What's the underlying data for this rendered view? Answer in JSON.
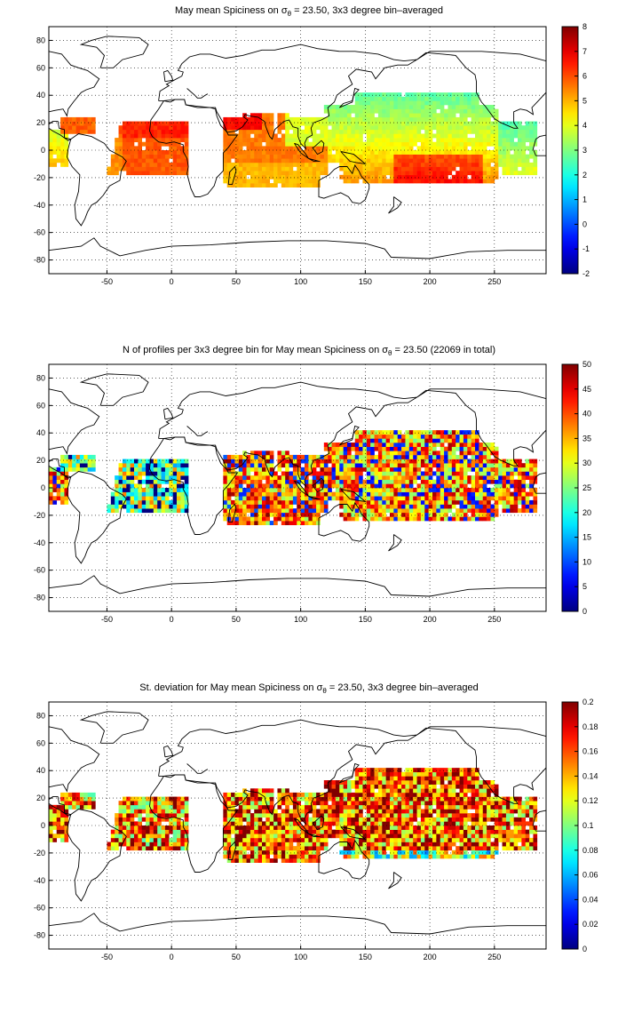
{
  "panels": [
    {
      "title_pre": "May mean Spiciness on ",
      "title_sigma": "σ",
      "title_sub": "θ",
      "title_post": " = 23.50, 3x3 degree bin–averaged",
      "colorbar": {
        "min": -2,
        "max": 8,
        "ticks": [
          "8",
          "7",
          "6",
          "5",
          "4",
          "3",
          "2",
          "1",
          "0",
          "-1",
          "-2"
        ]
      }
    },
    {
      "title_pre": "N of profiles per 3x3 degree bin for May mean Spiciness on ",
      "title_sigma": "σ",
      "title_sub": "θ",
      "title_post": " = 23.50 (22069 in total)",
      "colorbar": {
        "min": 0,
        "max": 50,
        "ticks": [
          "50",
          "45",
          "40",
          "35",
          "30",
          "25",
          "20",
          "15",
          "10",
          "5",
          "0"
        ]
      }
    },
    {
      "title_pre": "St. deviation for May mean Spiciness on ",
      "title_sigma": "σ",
      "title_sub": "θ",
      "title_post": " = 23.50, 3x3 degree bin–averaged",
      "colorbar": {
        "min": 0,
        "max": 0.2,
        "ticks": [
          "0.2",
          "0.18",
          "0.16",
          "0.14",
          "0.12",
          "0.1",
          "0.08",
          "0.06",
          "0.04",
          "0.02",
          "0"
        ]
      }
    }
  ],
  "axes": {
    "xlim": [
      -95,
      290
    ],
    "ylim": [
      -90,
      90
    ],
    "x_ticks": [
      "-50",
      "0",
      "50",
      "100",
      "150",
      "200",
      "250"
    ],
    "y_ticks": [
      "80",
      "60",
      "40",
      "20",
      "0",
      "-20",
      "-40",
      "-60",
      "-80"
    ],
    "grid": "dotted"
  },
  "colormap": "jet"
}
